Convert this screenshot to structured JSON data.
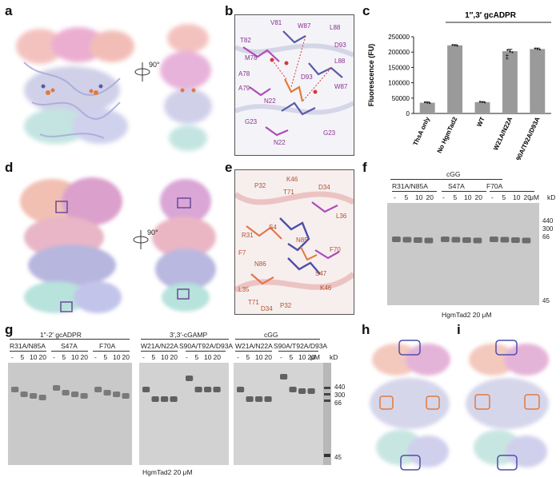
{
  "panels": {
    "a": "a",
    "b": "b",
    "c": "c",
    "d": "d",
    "e": "e",
    "f": "f",
    "g": "g",
    "h": "h",
    "i": "i"
  },
  "rotation_label": "90°",
  "panel_b_residues": [
    "T82",
    "V81",
    "W87",
    "L88",
    "M78",
    "A78",
    "A79",
    "N22",
    "D93",
    "L88",
    "W87",
    "G23",
    "N22",
    "D93",
    "G23"
  ],
  "panel_e_residues": [
    "K46",
    "P32",
    "T71",
    "D34",
    "L36",
    "R31",
    "S4",
    "N85",
    "F70",
    "F7",
    "N86",
    "S47",
    "L35",
    "K46",
    "T71",
    "D34",
    "P32"
  ],
  "chart_data": {
    "type": "bar",
    "title": "1″,3′ gcADPR",
    "categories": [
      "ThsA only",
      "No HgmTad2",
      "WT",
      "W21A/N22A",
      "S90A/T92A/D93A"
    ],
    "values": [
      35000,
      222000,
      37000,
      203000,
      210000
    ],
    "errors": [
      2500,
      2000,
      1500,
      6000,
      3000
    ],
    "ylabel": "Fluorescence (FU)",
    "ylim": [
      0,
      250000
    ],
    "yticks": [
      "0",
      "50000",
      "100000",
      "150000",
      "200000",
      "250000"
    ],
    "bar_color": "#9a9a9a",
    "significance_mark": "‡"
  },
  "gel_f": {
    "ligand": "cGG",
    "groups": [
      "R31A/N85A",
      "S47A",
      "F70A"
    ],
    "lane_labels": [
      "-",
      "5",
      "10",
      "20",
      "-",
      "5",
      "10",
      "20",
      "-",
      "5",
      "10",
      "20"
    ],
    "unit": "μM",
    "kd": "kD",
    "markers": [
      "440",
      "300",
      "66",
      "45"
    ],
    "footer": "HgmTad2 20 μM"
  },
  "gel_g": {
    "ligands": [
      "1″-2′ gcADPR",
      "3′,3′-cGAMP",
      "cGG"
    ],
    "groups_1": [
      "R31A/N85A",
      "S47A",
      "F70A"
    ],
    "groups_2": [
      "W21A/N22A",
      "S90A/T92A/D93A"
    ],
    "groups_3": [
      "W21A/N22A",
      "S90A/T92A/D93A"
    ],
    "lane_labels_1": [
      "-",
      "5",
      "10",
      "20",
      "-",
      "5",
      "10",
      "20",
      "-",
      "5",
      "10",
      "20"
    ],
    "lane_labels_2": [
      "-",
      "5",
      "10",
      "20",
      "-",
      "5",
      "10",
      "20"
    ],
    "unit": "μM",
    "kd": "kD",
    "markers": [
      "440",
      "300",
      "66",
      "45"
    ],
    "footer": "HgmTad2 20 μM"
  }
}
